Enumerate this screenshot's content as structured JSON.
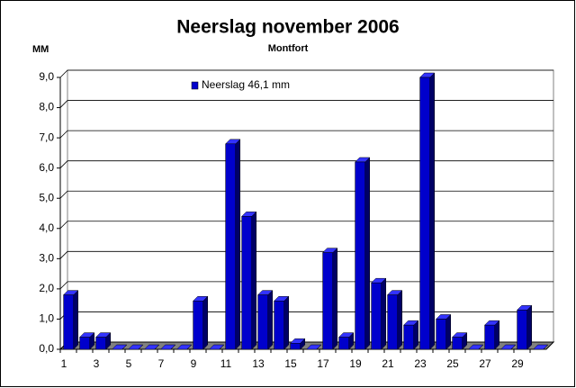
{
  "chart_data": {
    "type": "bar3d",
    "title": "Neerslag november 2006",
    "subtitle": "Montfort",
    "y_label": "MM",
    "categories": [
      1,
      null,
      3,
      null,
      5,
      null,
      7,
      null,
      9,
      null,
      11,
      null,
      13,
      null,
      15,
      null,
      17,
      null,
      19,
      null,
      21,
      null,
      23,
      null,
      25,
      null,
      27,
      null,
      29,
      null
    ],
    "series": [
      {
        "name": "Neerslag 46,1 mm",
        "color": "#0000cc",
        "values": [
          1.8,
          0.4,
          0.4,
          0,
          0,
          0,
          0,
          0,
          1.6,
          0,
          6.8,
          4.4,
          1.8,
          1.6,
          0.2,
          0,
          3.2,
          0.4,
          6.2,
          2.2,
          1.8,
          0.8,
          9.0,
          1.0,
          0.4,
          0,
          0.8,
          0,
          1.3,
          0
        ]
      }
    ],
    "ylim": [
      0,
      9
    ],
    "yticks": [
      {
        "value": 0,
        "label": "0,0"
      },
      {
        "value": 1,
        "label": "1,0"
      },
      {
        "value": 2,
        "label": "2,0"
      },
      {
        "value": 3,
        "label": "3,0"
      },
      {
        "value": 4,
        "label": "4,0"
      },
      {
        "value": 5,
        "label": "5,0"
      },
      {
        "value": 6,
        "label": "6,0"
      },
      {
        "value": 7,
        "label": "7,0"
      },
      {
        "value": 8,
        "label": "8,0"
      },
      {
        "value": 9,
        "label": "9,0"
      }
    ],
    "grid": true
  }
}
